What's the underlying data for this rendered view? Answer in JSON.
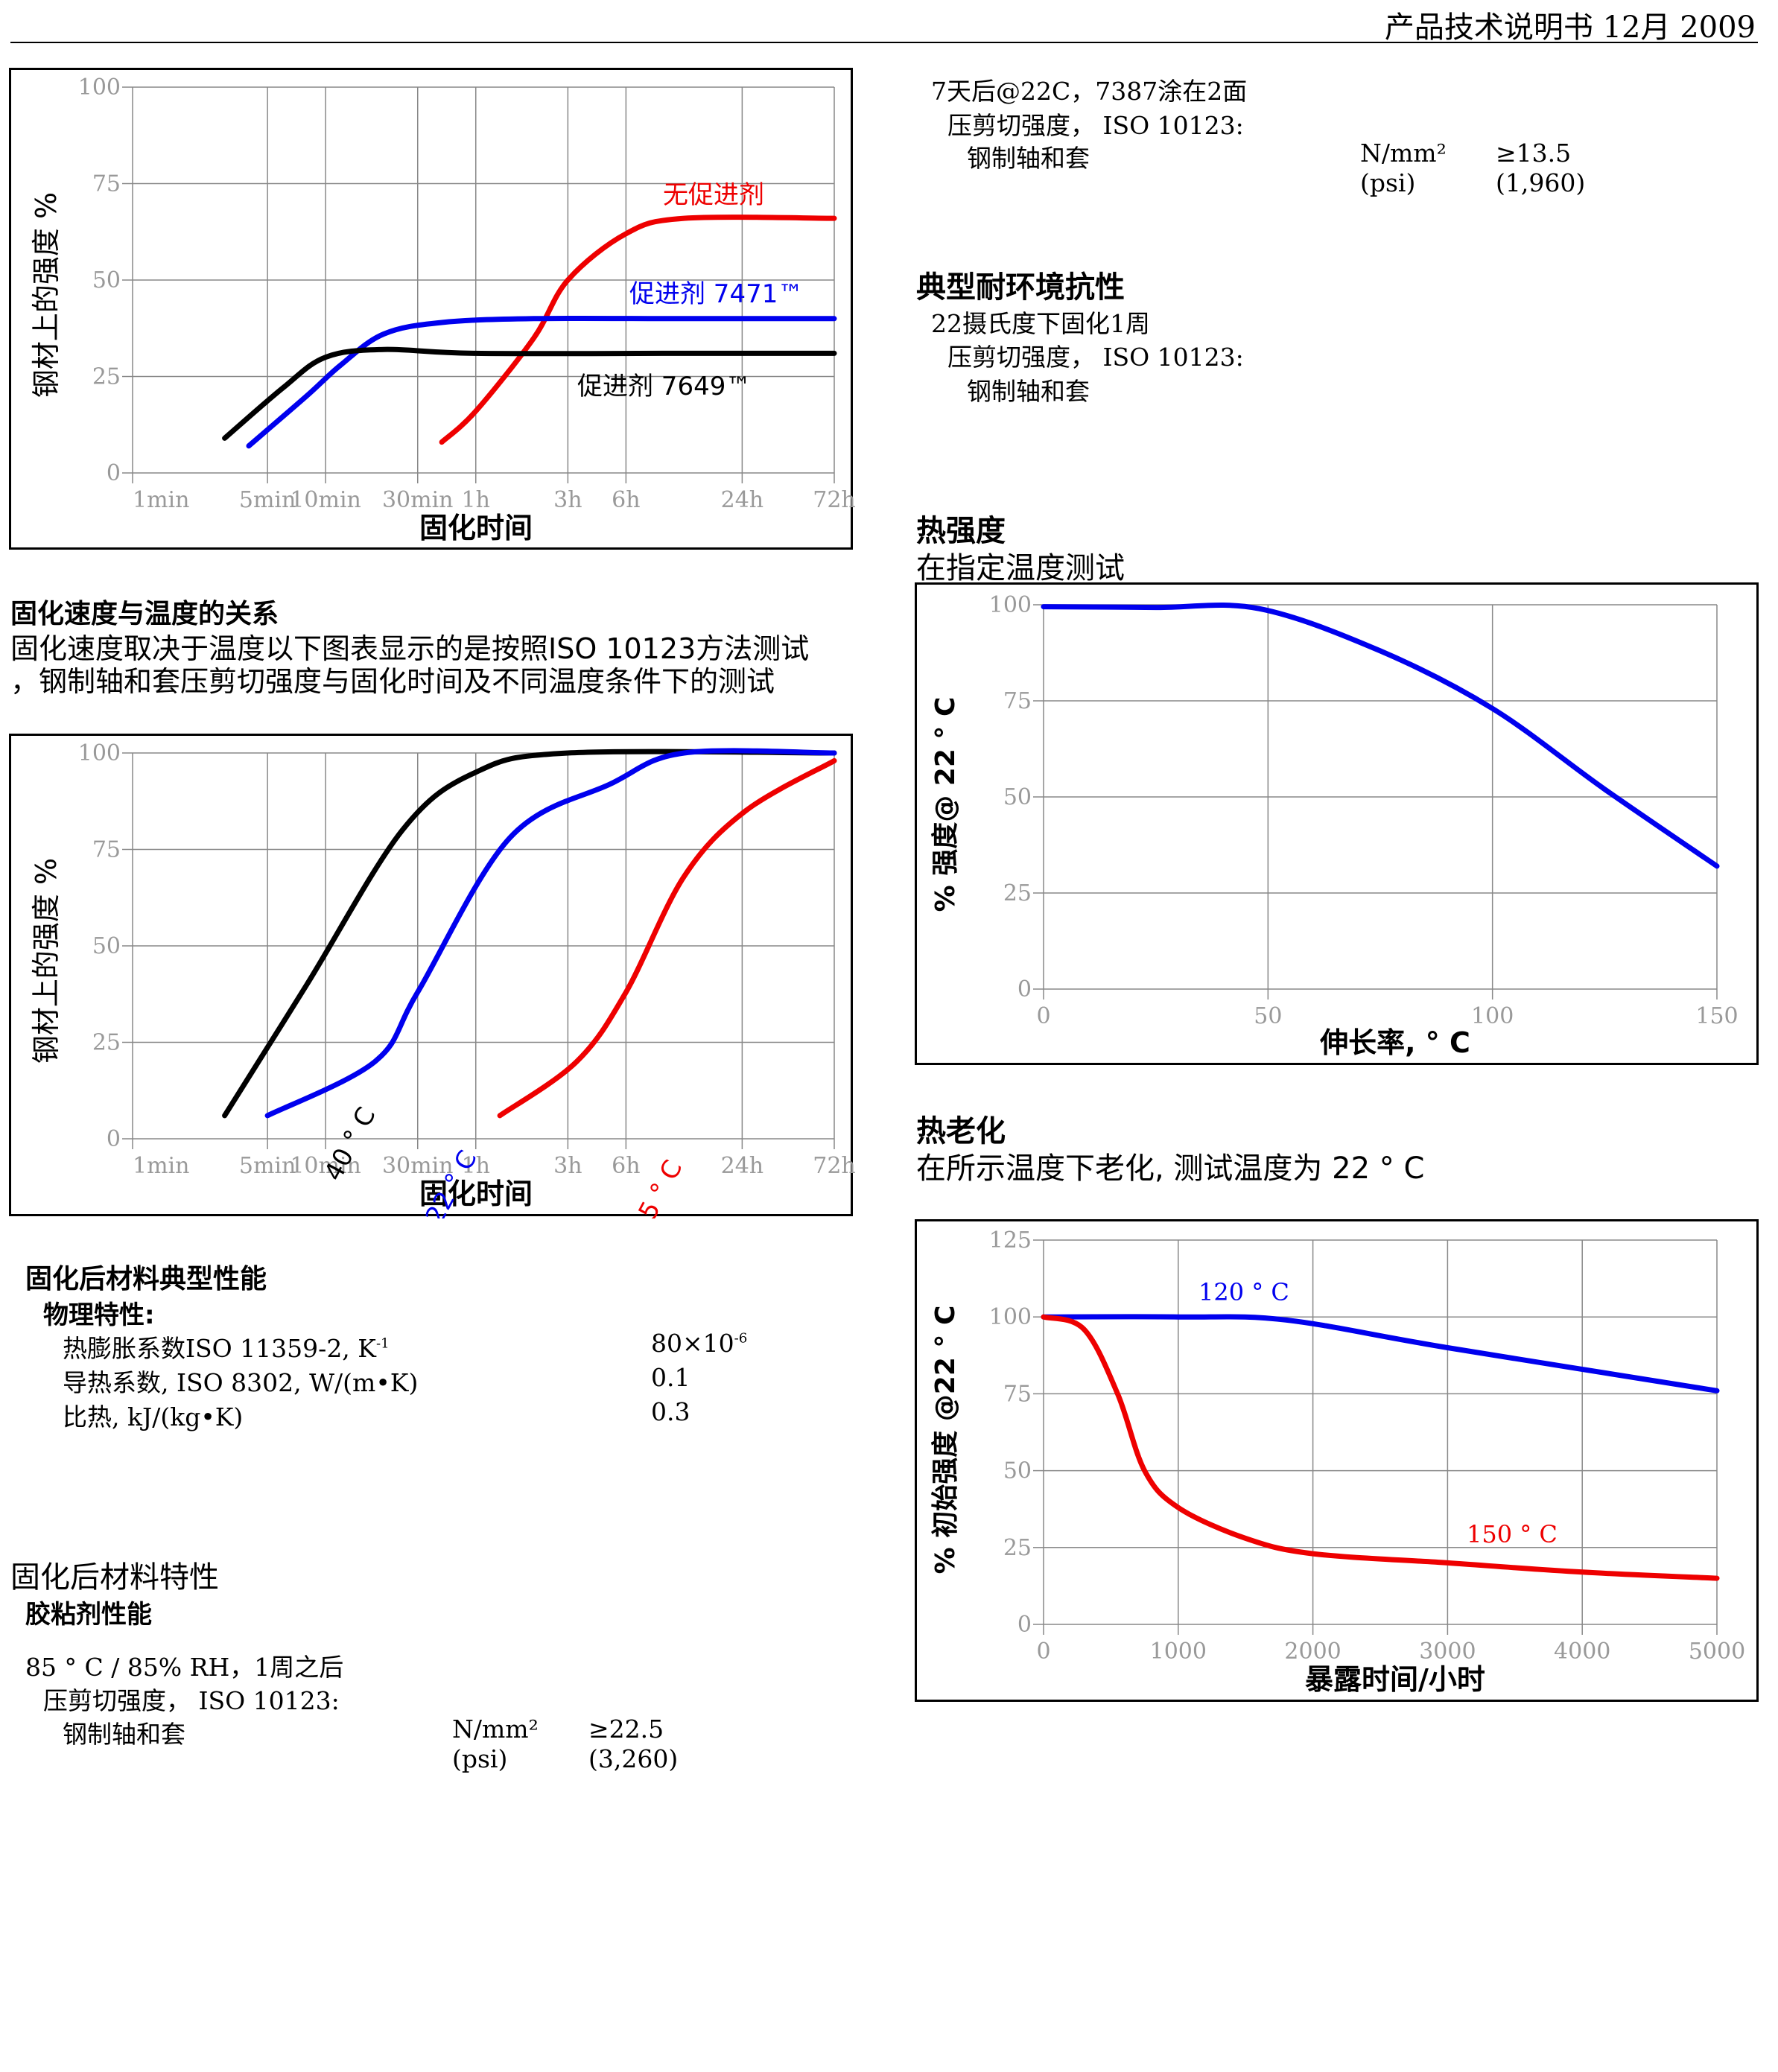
{
  "header": {
    "title": "产品技术说明书 12月 2009"
  },
  "chart1": {
    "chart_data": {
      "type": "line",
      "xlabel": "固化时间",
      "ylabel": "钢材上的强度 %",
      "yticks": [
        "0",
        "25",
        "50",
        "75",
        "100"
      ],
      "xticks": [
        "1min",
        "5min",
        "10min",
        "30min",
        "1h",
        "3h",
        "6h",
        "24h",
        "72h"
      ],
      "ylim": [
        0,
        100
      ],
      "xscale": "log",
      "series": [
        {
          "name": "无促进剂",
          "color": "#ee0000",
          "points": [
            [
              40,
              8
            ],
            [
              60,
              16
            ],
            [
              120,
              35
            ],
            [
              180,
              50
            ],
            [
              360,
              62
            ],
            [
              720,
              66
            ],
            [
              4320,
              66
            ]
          ]
        },
        {
          "name": "促进剂 7471™",
          "color": "#0000ee",
          "points": [
            [
              4,
              7
            ],
            [
              8,
              20
            ],
            [
              12,
              28
            ],
            [
              20,
              36
            ],
            [
              40,
              39
            ],
            [
              120,
              40
            ],
            [
              720,
              40
            ],
            [
              4320,
              40
            ]
          ]
        },
        {
          "name": "促进剂 7649™",
          "color": "#000000",
          "points": [
            [
              3,
              9
            ],
            [
              6,
              22
            ],
            [
              10,
              30
            ],
            [
              20,
              32
            ],
            [
              60,
              31
            ],
            [
              720,
              31
            ],
            [
              4320,
              31
            ]
          ]
        }
      ]
    }
  },
  "cure_speed": {
    "title": "固化速度与温度的关系",
    "line1": "固化速度取决于温度以下图表显示的是按照ISO  10123方法测试",
    "line2": "，钢制轴和套压剪切强度与固化时间及不同温度条件下的测试"
  },
  "chart2": {
    "chart_data": {
      "type": "line",
      "xlabel": "固化时间",
      "ylabel": "钢材上的强度 %",
      "yticks": [
        "0",
        "25",
        "50",
        "75",
        "100"
      ],
      "xticks": [
        "1min",
        "5min",
        "10min",
        "30min",
        "1h",
        "3h",
        "6h",
        "24h",
        "72h"
      ],
      "ylim": [
        0,
        100
      ],
      "xscale": "log",
      "series": [
        {
          "name": "40 ° C",
          "color": "#000000",
          "points": [
            [
              3,
              6
            ],
            [
              8,
              40
            ],
            [
              25,
              80
            ],
            [
              60,
              95
            ],
            [
              180,
              100
            ],
            [
              4320,
              100
            ]
          ]
        },
        {
          "name": "22 ° C",
          "color": "#0000ee",
          "points": [
            [
              5,
              6
            ],
            [
              18,
              20
            ],
            [
              30,
              38
            ],
            [
              90,
              78
            ],
            [
              300,
              92
            ],
            [
              720,
              100
            ],
            [
              4320,
              100
            ]
          ]
        },
        {
          "name": "5 ° C",
          "color": "#ee0000",
          "points": [
            [
              80,
              6
            ],
            [
              200,
              20
            ],
            [
              360,
              38
            ],
            [
              720,
              68
            ],
            [
              1500,
              85
            ],
            [
              4320,
              98
            ]
          ]
        }
      ]
    }
  },
  "typical": {
    "title": "固化后材料典型性能",
    "subtitle": "物理特性:",
    "rows": [
      {
        "label": "热膨胀系数ISO 11359-2, K",
        "label_sup": "-1",
        "value": "80×10",
        "value_sup": "-6"
      },
      {
        "label": "导热系数, ISO 8302,     W/(m•K)",
        "label_sup": "",
        "value": "0.1",
        "value_sup": ""
      },
      {
        "label": "比热, kJ/(kg•K)",
        "label_sup": "",
        "value": "0.3",
        "value_sup": ""
      }
    ]
  },
  "cured": {
    "title": "固化后材料特性",
    "subtitle": "胶粘剂性能",
    "cond": "85 ° C / 85% RH，1周之后",
    "test": "压剪切强度，  ISO 10123:",
    "item": "钢制轴和套",
    "unit1": "N/mm²",
    "unit2": "(psi)",
    "val1": "≥22.5",
    "val2": "(3,260)"
  },
  "right_top": {
    "cond": "7天后@22C，7387涂在2面",
    "test": "压剪切强度，  ISO 10123:",
    "item": "钢制轴和套",
    "unit1": "N/mm²",
    "unit2": "(psi)",
    "val1": "≥13.5",
    "val2": "(1,960)"
  },
  "env": {
    "title": "典型耐环境抗性",
    "cond": "22摄氏度下固化1周",
    "test": "压剪切强度，  ISO 10123:",
    "item": "钢制轴和套"
  },
  "hot_strength": {
    "title": "热强度",
    "subtitle": "在指定温度测试",
    "chart_data": {
      "type": "line",
      "xlabel": "伸长率, ° C",
      "ylabel": "% 强度@ 22 ° C",
      "xlim": [
        0,
        150
      ],
      "ylim": [
        0,
        100
      ],
      "xticks": [
        "0",
        "50",
        "100",
        "150"
      ],
      "yticks": [
        "0",
        "25",
        "50",
        "75",
        "100"
      ],
      "series": [
        {
          "name": "",
          "color": "#0000ee",
          "points": [
            [
              0,
              99.5
            ],
            [
              25,
              99.3
            ],
            [
              48,
              99
            ],
            [
              75,
              88
            ],
            [
              100,
              73
            ],
            [
              125,
              52
            ],
            [
              150,
              32
            ]
          ]
        }
      ]
    }
  },
  "heat_aging": {
    "title": "热老化",
    "subtitle": "在所示温度下老化,    测试温度为 22 ° C",
    "chart_data": {
      "type": "line",
      "xlabel": "暴露时间/小时",
      "ylabel": "% 初始强度  @22 ° C",
      "xlim": [
        0,
        5000
      ],
      "ylim": [
        0,
        125
      ],
      "xticks": [
        "0",
        "1000",
        "2000",
        "3000",
        "4000",
        "5000"
      ],
      "yticks": [
        "0",
        "25",
        "50",
        "75",
        "100",
        "125"
      ],
      "series": [
        {
          "name": "120 ° C",
          "color": "#0000ee",
          "points": [
            [
              0,
              100
            ],
            [
              1000,
              100
            ],
            [
              1800,
              99
            ],
            [
              3000,
              90
            ],
            [
              5000,
              76
            ]
          ]
        },
        {
          "name": "150 ° C",
          "color": "#ee0000",
          "points": [
            [
              0,
              100
            ],
            [
              300,
              96
            ],
            [
              550,
              75
            ],
            [
              750,
              50
            ],
            [
              1000,
              38
            ],
            [
              1500,
              28
            ],
            [
              2000,
              23
            ],
            [
              3000,
              20
            ],
            [
              4000,
              17
            ],
            [
              5000,
              15
            ]
          ]
        }
      ]
    }
  }
}
